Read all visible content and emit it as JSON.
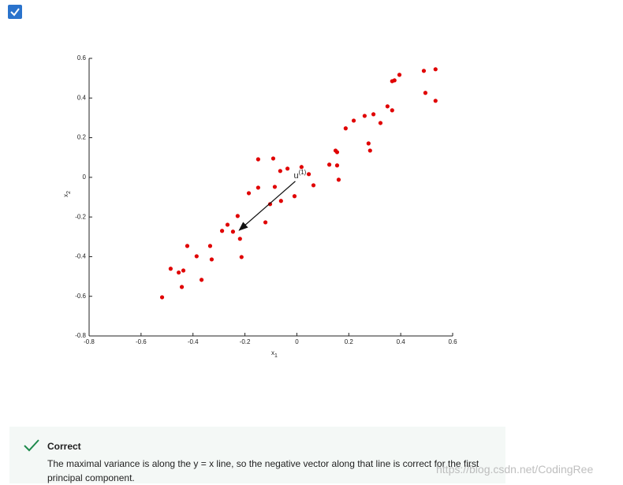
{
  "chart_data": {
    "type": "scatter",
    "x": [
      -0.519,
      -0.486,
      -0.455,
      -0.437,
      -0.443,
      -0.422,
      -0.386,
      -0.367,
      -0.334,
      -0.328,
      -0.288,
      -0.267,
      -0.246,
      -0.228,
      -0.219,
      -0.213,
      -0.185,
      -0.149,
      -0.149,
      -0.121,
      -0.103,
      -0.091,
      -0.085,
      -0.064,
      -0.061,
      -0.036,
      -0.009,
      0.018,
      0.046,
      0.064,
      0.125,
      0.149,
      0.155,
      0.155,
      0.161,
      0.188,
      0.219,
      0.261,
      0.276,
      0.282,
      0.295,
      0.322,
      0.349,
      0.367,
      0.367,
      0.376,
      0.395,
      0.489,
      0.495,
      0.534,
      0.534
    ],
    "series": [
      {
        "color": "#e00000",
        "values": [
          -0.605,
          -0.461,
          -0.48,
          -0.47,
          -0.553,
          -0.346,
          -0.398,
          -0.517,
          -0.346,
          -0.414,
          -0.27,
          -0.239,
          -0.274,
          -0.195,
          -0.31,
          -0.402,
          -0.08,
          0.091,
          -0.052,
          -0.227,
          -0.135,
          0.095,
          -0.048,
          0.032,
          -0.119,
          0.044,
          -0.095,
          0.052,
          0.016,
          -0.04,
          0.064,
          0.135,
          0.127,
          0.06,
          -0.012,
          0.247,
          0.286,
          0.31,
          0.171,
          0.135,
          0.318,
          0.274,
          0.358,
          0.338,
          0.485,
          0.489,
          0.517,
          0.537,
          0.426,
          0.545,
          0.386
        ]
      }
    ],
    "xlim": [
      -0.8,
      0.6
    ],
    "ylim": [
      -0.8,
      0.6
    ],
    "xticks": [
      -0.8,
      -0.6,
      -0.4,
      -0.2,
      0,
      0.2,
      0.4,
      0.6
    ],
    "yticks": [
      -0.8,
      -0.6,
      -0.4,
      -0.2,
      0,
      0.2,
      0.4,
      0.6
    ],
    "x_label": {
      "text": "x",
      "subscript": "1"
    },
    "y_label": {
      "text": "x",
      "subscript": "2"
    },
    "arrow": {
      "x": [
        -0.006,
        -0.222
      ],
      "y": [
        -0.02,
        -0.267
      ],
      "label": "u",
      "superscript": "(1)"
    }
  },
  "feedback": {
    "title": "Correct",
    "text": "The maximal variance is along the y = x line, so the negative vector along that line is correct for the first principal component."
  },
  "watermark": "https://blog.csdn.net/CodingRee"
}
